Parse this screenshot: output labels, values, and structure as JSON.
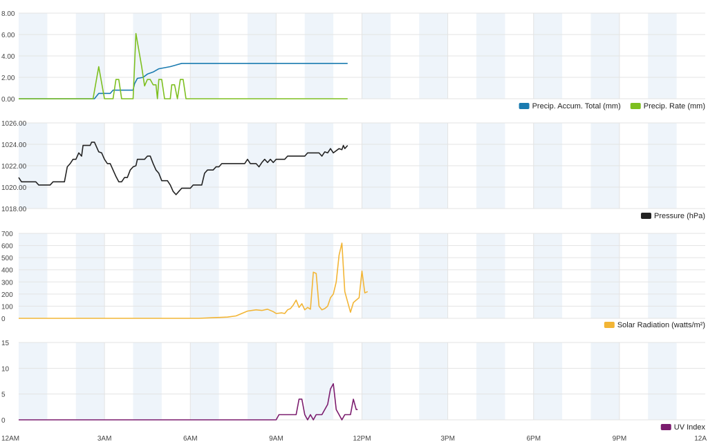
{
  "x_axis": {
    "tick_labels": [
      "12AM",
      "3AM",
      "6AM",
      "9AM",
      "12PM",
      "3PM",
      "6PM",
      "9PM",
      "12A"
    ],
    "range_hours": [
      0,
      24
    ]
  },
  "colors": {
    "band": "#eef4fa",
    "grid": "#e3e3e3"
  },
  "chart_data": [
    {
      "type": "line",
      "panel": "precipitation",
      "ylim": [
        0,
        8
      ],
      "y_ticks": [
        "0.00",
        "2.00",
        "4.00",
        "6.00",
        "8.00"
      ],
      "y_tick_values": [
        0,
        2,
        4,
        6,
        8
      ],
      "legend": [
        {
          "label": "Precip. Accum. Total (mm)",
          "color": "#1a7bb0"
        },
        {
          "label": "Precip. Rate (mm)",
          "color": "#7dbf1f"
        }
      ],
      "series": [
        {
          "name": "Precip. Accum. Total (mm)",
          "color": "#1a7bb0",
          "points": [
            [
              0,
              0
            ],
            [
              2.65,
              0
            ],
            [
              2.8,
              0.5
            ],
            [
              3.2,
              0.5
            ],
            [
              3.3,
              0.8
            ],
            [
              4.0,
              0.8
            ],
            [
              4.05,
              1.4
            ],
            [
              4.15,
              1.9
            ],
            [
              4.35,
              2.0
            ],
            [
              4.5,
              2.3
            ],
            [
              4.7,
              2.5
            ],
            [
              4.9,
              2.8
            ],
            [
              5.3,
              3.0
            ],
            [
              5.7,
              3.3
            ],
            [
              11.5,
              3.3
            ]
          ]
        },
        {
          "name": "Precip. Rate (mm)",
          "color": "#7dbf1f",
          "points": [
            [
              0,
              0
            ],
            [
              2.6,
              0
            ],
            [
              2.8,
              3.0
            ],
            [
              3.0,
              0
            ],
            [
              3.3,
              0
            ],
            [
              3.4,
              1.8
            ],
            [
              3.5,
              1.8
            ],
            [
              3.6,
              0
            ],
            [
              4.0,
              0
            ],
            [
              4.1,
              6.1
            ],
            [
              4.3,
              3.0
            ],
            [
              4.4,
              1.2
            ],
            [
              4.5,
              1.8
            ],
            [
              4.6,
              1.8
            ],
            [
              4.7,
              1.3
            ],
            [
              4.8,
              1.3
            ],
            [
              4.85,
              0
            ],
            [
              4.9,
              1.8
            ],
            [
              5.0,
              1.8
            ],
            [
              5.1,
              0
            ],
            [
              5.3,
              0
            ],
            [
              5.35,
              1.3
            ],
            [
              5.45,
              1.3
            ],
            [
              5.55,
              0
            ],
            [
              5.65,
              1.8
            ],
            [
              5.75,
              1.8
            ],
            [
              5.85,
              0
            ],
            [
              11.5,
              0
            ]
          ]
        }
      ]
    },
    {
      "type": "line",
      "panel": "pressure",
      "ylim": [
        1018,
        1026
      ],
      "y_ticks": [
        "1018.00",
        "1020.00",
        "1022.00",
        "1024.00",
        "1026.00"
      ],
      "y_tick_values": [
        1018,
        1020,
        1022,
        1024,
        1026
      ],
      "legend": [
        {
          "label": "Pressure (hPa)",
          "color": "#222222"
        }
      ],
      "series": [
        {
          "name": "Pressure (hPa)",
          "color": "#222222",
          "points": [
            [
              0,
              1020.9
            ],
            [
              0.1,
              1020.5
            ],
            [
              0.6,
              1020.5
            ],
            [
              0.7,
              1020.2
            ],
            [
              1.1,
              1020.2
            ],
            [
              1.2,
              1020.5
            ],
            [
              1.6,
              1020.5
            ],
            [
              1.7,
              1021.9
            ],
            [
              1.8,
              1022.2
            ],
            [
              1.9,
              1022.6
            ],
            [
              2.0,
              1022.6
            ],
            [
              2.1,
              1023.2
            ],
            [
              2.2,
              1022.9
            ],
            [
              2.25,
              1023.9
            ],
            [
              2.5,
              1023.9
            ],
            [
              2.55,
              1024.2
            ],
            [
              2.65,
              1024.2
            ],
            [
              2.8,
              1023.3
            ],
            [
              2.9,
              1023.2
            ],
            [
              3.0,
              1022.6
            ],
            [
              3.1,
              1022.2
            ],
            [
              3.2,
              1022.2
            ],
            [
              3.4,
              1021.0
            ],
            [
              3.5,
              1020.5
            ],
            [
              3.6,
              1020.5
            ],
            [
              3.7,
              1020.9
            ],
            [
              3.8,
              1020.9
            ],
            [
              3.9,
              1021.6
            ],
            [
              4.0,
              1021.9
            ],
            [
              4.1,
              1022.0
            ],
            [
              4.15,
              1022.6
            ],
            [
              4.3,
              1022.6
            ],
            [
              4.4,
              1022.6
            ],
            [
              4.5,
              1022.9
            ],
            [
              4.6,
              1022.9
            ],
            [
              4.7,
              1022.2
            ],
            [
              4.8,
              1021.6
            ],
            [
              4.9,
              1021.3
            ],
            [
              5.0,
              1020.6
            ],
            [
              5.2,
              1020.6
            ],
            [
              5.3,
              1020.2
            ],
            [
              5.4,
              1019.6
            ],
            [
              5.5,
              1019.3
            ],
            [
              5.6,
              1019.6
            ],
            [
              5.7,
              1019.9
            ],
            [
              6.0,
              1019.9
            ],
            [
              6.1,
              1020.2
            ],
            [
              6.4,
              1020.2
            ],
            [
              6.5,
              1021.3
            ],
            [
              6.6,
              1021.6
            ],
            [
              6.8,
              1021.6
            ],
            [
              6.9,
              1021.9
            ],
            [
              7.0,
              1021.9
            ],
            [
              7.1,
              1022.2
            ],
            [
              7.9,
              1022.2
            ],
            [
              8.0,
              1022.6
            ],
            [
              8.1,
              1022.2
            ],
            [
              8.3,
              1022.2
            ],
            [
              8.4,
              1021.9
            ],
            [
              8.5,
              1022.3
            ],
            [
              8.6,
              1022.6
            ],
            [
              8.7,
              1022.3
            ],
            [
              8.8,
              1022.6
            ],
            [
              8.9,
              1022.3
            ],
            [
              9.0,
              1022.6
            ],
            [
              9.3,
              1022.6
            ],
            [
              9.4,
              1022.9
            ],
            [
              10.0,
              1022.9
            ],
            [
              10.1,
              1023.2
            ],
            [
              10.5,
              1023.2
            ],
            [
              10.6,
              1022.9
            ],
            [
              10.7,
              1023.3
            ],
            [
              10.8,
              1023.2
            ],
            [
              10.9,
              1023.6
            ],
            [
              11.0,
              1023.2
            ],
            [
              11.2,
              1023.6
            ],
            [
              11.3,
              1023.5
            ],
            [
              11.35,
              1023.9
            ],
            [
              11.4,
              1023.6
            ],
            [
              11.5,
              1023.9
            ]
          ]
        }
      ]
    },
    {
      "type": "line",
      "panel": "solar",
      "ylim": [
        0,
        700
      ],
      "y_ticks": [
        "0",
        "100",
        "200",
        "300",
        "400",
        "500",
        "600",
        "700"
      ],
      "y_tick_values": [
        0,
        100,
        200,
        300,
        400,
        500,
        600,
        700
      ],
      "legend": [
        {
          "label": "Solar Radiation (watts/m²)",
          "color": "#f2b535"
        }
      ],
      "series": [
        {
          "name": "Solar Radiation (watts/m²)",
          "color": "#f2b535",
          "points": [
            [
              0,
              0
            ],
            [
              6.3,
              0
            ],
            [
              6.8,
              5
            ],
            [
              7.3,
              10
            ],
            [
              7.6,
              20
            ],
            [
              7.8,
              40
            ],
            [
              8.0,
              60
            ],
            [
              8.3,
              70
            ],
            [
              8.5,
              65
            ],
            [
              8.7,
              75
            ],
            [
              8.9,
              55
            ],
            [
              9.0,
              40
            ],
            [
              9.2,
              45
            ],
            [
              9.3,
              40
            ],
            [
              9.4,
              70
            ],
            [
              9.5,
              80
            ],
            [
              9.6,
              110
            ],
            [
              9.7,
              150
            ],
            [
              9.8,
              90
            ],
            [
              9.9,
              120
            ],
            [
              10.0,
              70
            ],
            [
              10.1,
              90
            ],
            [
              10.2,
              75
            ],
            [
              10.3,
              380
            ],
            [
              10.4,
              370
            ],
            [
              10.5,
              100
            ],
            [
              10.6,
              70
            ],
            [
              10.7,
              80
            ],
            [
              10.8,
              100
            ],
            [
              10.9,
              170
            ],
            [
              11.0,
              200
            ],
            [
              11.1,
              300
            ],
            [
              11.2,
              520
            ],
            [
              11.3,
              620
            ],
            [
              11.4,
              220
            ],
            [
              11.6,
              50
            ],
            [
              11.7,
              130
            ],
            [
              11.8,
              150
            ],
            [
              11.9,
              170
            ],
            [
              12.0,
              390
            ],
            [
              12.1,
              210
            ],
            [
              12.2,
              220
            ]
          ]
        }
      ]
    },
    {
      "type": "line",
      "panel": "uv",
      "ylim": [
        0,
        15
      ],
      "y_ticks": [
        "0",
        "5",
        "10",
        "15"
      ],
      "y_tick_values": [
        0,
        5,
        10,
        15
      ],
      "legend": [
        {
          "label": "UV Index",
          "color": "#7b1c6e"
        }
      ],
      "series": [
        {
          "name": "UV Index",
          "color": "#7b1c6e",
          "points": [
            [
              0,
              0
            ],
            [
              9.0,
              0
            ],
            [
              9.1,
              1
            ],
            [
              9.7,
              1
            ],
            [
              9.8,
              4
            ],
            [
              9.9,
              4
            ],
            [
              10.0,
              1
            ],
            [
              10.1,
              0
            ],
            [
              10.2,
              1
            ],
            [
              10.3,
              0
            ],
            [
              10.4,
              1
            ],
            [
              10.6,
              1
            ],
            [
              10.8,
              3
            ],
            [
              10.9,
              6
            ],
            [
              11.0,
              7
            ],
            [
              11.1,
              2
            ],
            [
              11.2,
              1
            ],
            [
              11.3,
              0
            ],
            [
              11.4,
              1
            ],
            [
              11.6,
              1
            ],
            [
              11.7,
              4
            ],
            [
              11.8,
              2
            ],
            [
              11.85,
              2
            ]
          ]
        }
      ]
    }
  ]
}
